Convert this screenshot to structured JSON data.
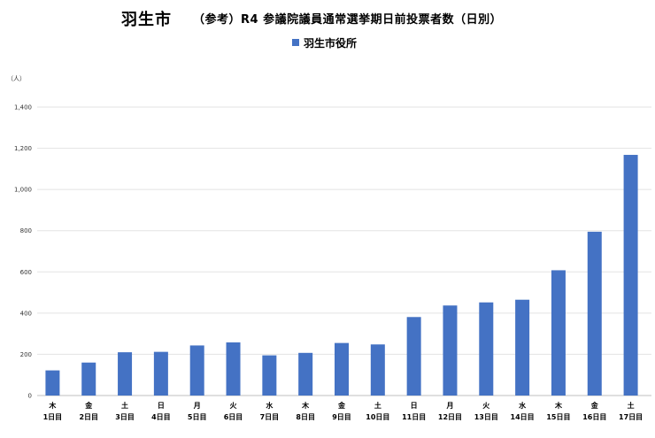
{
  "chart_data": {
    "type": "bar",
    "title": "羽生市",
    "subtitle": "（参考）R4 参議院議員通常選挙期日前投票者数（日別）",
    "unit_label": "（人）",
    "legend_position": "top",
    "grid": true,
    "ylim": [
      0,
      1400
    ],
    "yticks": [
      "0",
      "200",
      "400",
      "600",
      "800",
      "1,000",
      "1,200",
      "1,400"
    ],
    "ytick_values": [
      0,
      200,
      400,
      600,
      800,
      1000,
      1200,
      1400
    ],
    "categories": [
      [
        "木",
        "1日目"
      ],
      [
        "金",
        "2日目"
      ],
      [
        "土",
        "3日目"
      ],
      [
        "日",
        "4日目"
      ],
      [
        "月",
        "5日目"
      ],
      [
        "火",
        "6日目"
      ],
      [
        "水",
        "7日目"
      ],
      [
        "木",
        "8日目"
      ],
      [
        "金",
        "9日目"
      ],
      [
        "土",
        "10日目"
      ],
      [
        "日",
        "11日目"
      ],
      [
        "月",
        "12日目"
      ],
      [
        "火",
        "13日目"
      ],
      [
        "水",
        "14日目"
      ],
      [
        "木",
        "15日目"
      ],
      [
        "金",
        "16日目"
      ],
      [
        "土",
        "17日目"
      ]
    ],
    "series": [
      {
        "name": "羽生市役所",
        "color": "#4472c4",
        "values": [
          122,
          160,
          210,
          212,
          243,
          258,
          195,
          207,
          255,
          248,
          381,
          437,
          452,
          465,
          608,
          795,
          1168
        ]
      }
    ]
  }
}
